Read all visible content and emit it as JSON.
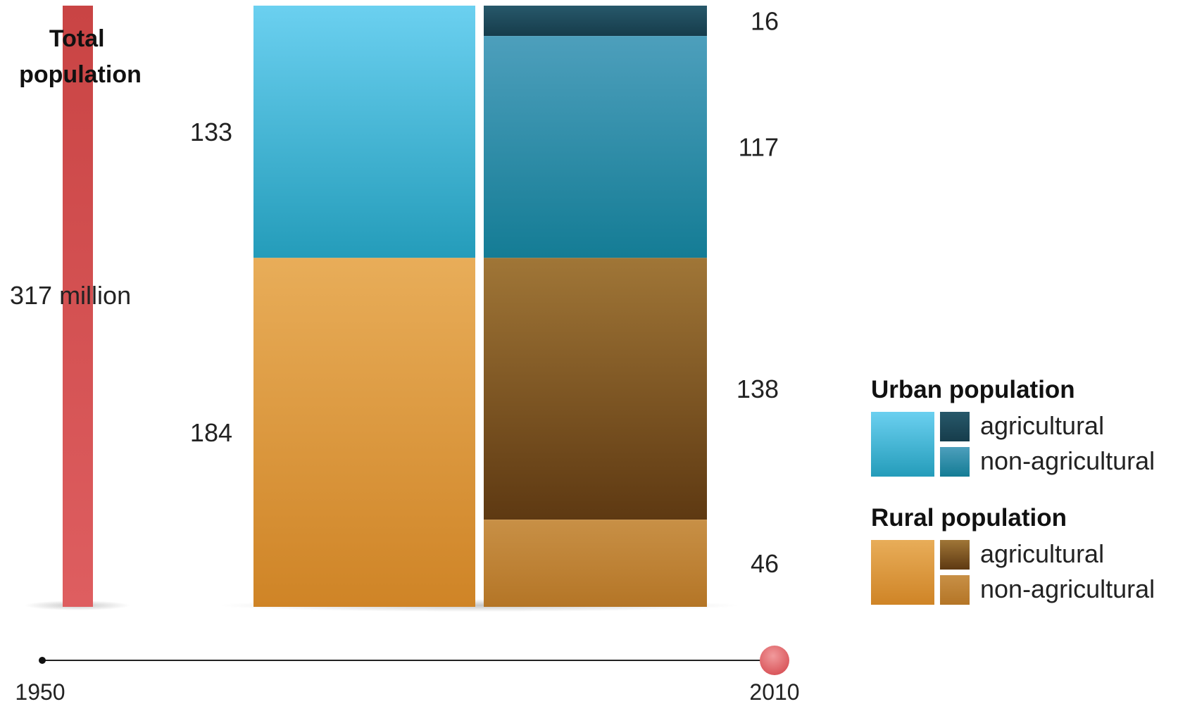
{
  "chart_data": {
    "type": "bar",
    "title": "",
    "unit": "million",
    "total": {
      "label": "Total population",
      "value": 317,
      "value_label": "317 million"
    },
    "bars": [
      {
        "name": "1950",
        "segments": [
          {
            "key": "urban",
            "value": 133,
            "label": "133"
          },
          {
            "key": "rural",
            "value": 184,
            "label": "184"
          }
        ]
      },
      {
        "name": "2010",
        "segments": [
          {
            "key": "urban_agricultural",
            "value": 16,
            "label": "16"
          },
          {
            "key": "urban_non_agricultural",
            "value": 117,
            "label": "117"
          },
          {
            "key": "rural_agricultural",
            "value": 138,
            "label": "138"
          },
          {
            "key": "rural_non_agricultural",
            "value": 46,
            "label": "46"
          }
        ]
      }
    ],
    "timeline": {
      "start": "1950",
      "end": "2010",
      "selected": "2010"
    },
    "legend": {
      "placement": "right",
      "groups": [
        {
          "title": "Urban population",
          "items": [
            {
              "key": "urban_agricultural",
              "label": "agricultural"
            },
            {
              "key": "urban_non_agricultural",
              "label": "non-agricultural"
            }
          ]
        },
        {
          "title": "Rural population",
          "items": [
            {
              "key": "rural_agricultural",
              "label": "agricultural"
            },
            {
              "key": "rural_non_agricultural",
              "label": "non-agricultural"
            }
          ]
        }
      ]
    },
    "colors": {
      "total": "#d95a5a",
      "urban": "#3ab6d6",
      "urban_agricultural": "#1c4b5c",
      "urban_non_agricultural": "#2e8fab",
      "rural": "#dd9435",
      "rural_agricultural": "#7a5022",
      "rural_non_agricultural": "#c3893a",
      "timeline_handle": "#e0646a"
    }
  }
}
